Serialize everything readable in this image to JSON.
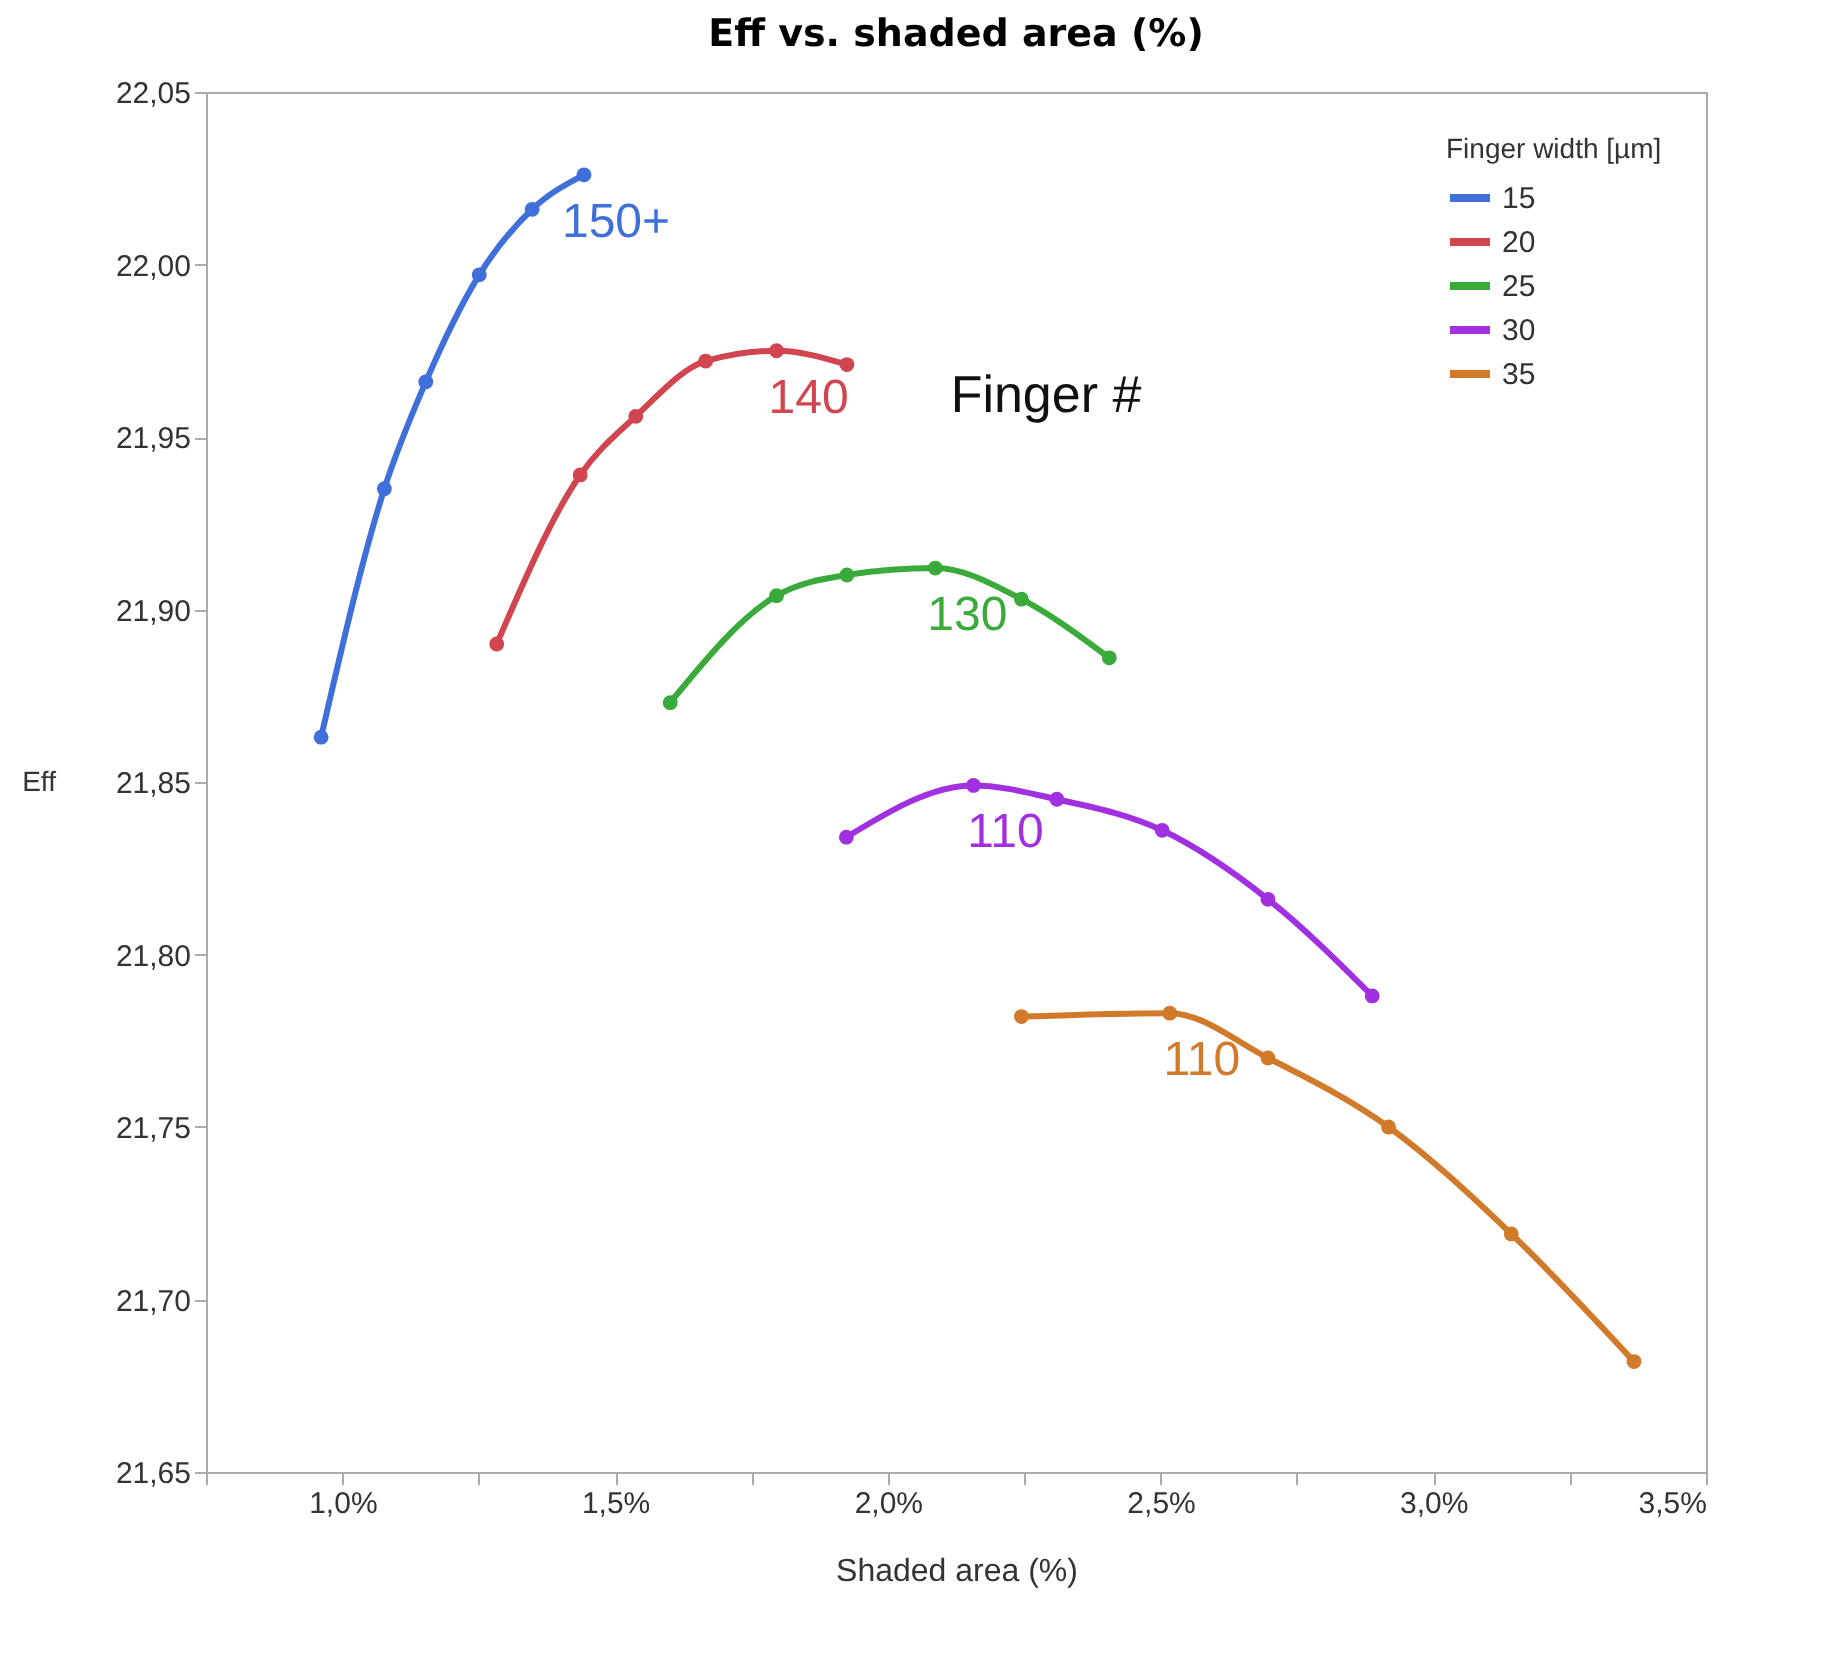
{
  "chart_data": {
    "type": "line",
    "title": "Eff vs. shaded area (%)",
    "xlabel": "Shaded area (%)",
    "ylabel": "Eff",
    "legend_title": "Finger width [µm]",
    "legend": "top right",
    "marker": "circle",
    "line_style": "solid",
    "grid": false,
    "xlim": [
      0.75,
      3.5
    ],
    "xticks": [
      {
        "value": 0.75,
        "label": null
      },
      {
        "value": 1.0,
        "label": "1,0%"
      },
      {
        "value": 1.25,
        "label": null
      },
      {
        "value": 1.5,
        "label": "1,5%"
      },
      {
        "value": 1.75,
        "label": null
      },
      {
        "value": 2.0,
        "label": "2,0%"
      },
      {
        "value": 2.25,
        "label": null
      },
      {
        "value": 2.5,
        "label": "2,5%"
      },
      {
        "value": 2.75,
        "label": null
      },
      {
        "value": 3.0,
        "label": "3,0%"
      },
      {
        "value": 3.25,
        "label": null
      },
      {
        "value": 3.5,
        "label": "3,5%"
      }
    ],
    "ylim": [
      21.65,
      22.05
    ],
    "yticks": [
      {
        "value": 21.65,
        "label": "21,65"
      },
      {
        "value": 21.7,
        "label": "21,70"
      },
      {
        "value": 21.75,
        "label": "21,75"
      },
      {
        "value": 21.8,
        "label": "21,80"
      },
      {
        "value": 21.85,
        "label": "21,85"
      },
      {
        "value": 21.9,
        "label": "21,90"
      },
      {
        "value": 21.95,
        "label": "21,95"
      },
      {
        "value": 22.0,
        "label": "22,00"
      },
      {
        "value": 22.05,
        "label": "22,05"
      }
    ],
    "series": [
      {
        "name": "15",
        "color": "#3f6fd8",
        "x": [
          0.961,
          1.077,
          1.153,
          1.251,
          1.348,
          1.443
        ],
        "values": [
          21.863,
          21.935,
          21.966,
          21.997,
          22.016,
          22.026
        ]
      },
      {
        "name": "20",
        "color": "#d0454f",
        "x": [
          1.283,
          1.436,
          1.538,
          1.666,
          1.796,
          1.925
        ],
        "values": [
          21.89,
          21.939,
          21.956,
          21.972,
          21.975,
          21.971
        ]
      },
      {
        "name": "25",
        "color": "#3aab3a",
        "x": [
          1.601,
          1.796,
          1.925,
          2.087,
          2.245,
          2.406
        ],
        "values": [
          21.873,
          21.904,
          21.91,
          21.912,
          21.903,
          21.886
        ]
      },
      {
        "name": "30",
        "color": "#a030e0",
        "x": [
          1.924,
          2.157,
          2.31,
          2.503,
          2.697,
          2.888
        ],
        "values": [
          21.834,
          21.849,
          21.845,
          21.836,
          21.816,
          21.788
        ]
      },
      {
        "name": "35",
        "color": "#d07a2a",
        "x": [
          2.245,
          2.517,
          2.697,
          2.918,
          3.143,
          3.368
        ],
        "values": [
          21.782,
          21.783,
          21.77,
          21.75,
          21.719,
          21.682
        ]
      }
    ],
    "annotations": [
      "150+",
      "140",
      "130",
      "110",
      "110",
      "Finger #"
    ]
  }
}
